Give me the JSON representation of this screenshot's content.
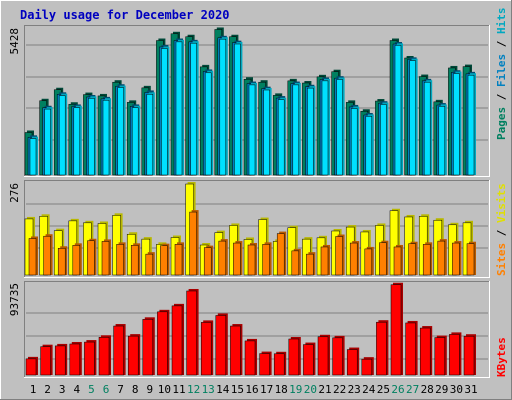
{
  "title": "Daily usage for December 2020",
  "colors": {
    "background": "#c0c0c0",
    "title": "#0000c0",
    "hits_front": "#00e0ff",
    "hits_side": "#00a8c0",
    "files_front": "#0080c0",
    "files_side": "#004c70",
    "pages_front": "#008060",
    "pages_side": "#004838",
    "visits_front": "#ffff00",
    "visits_side": "#b8b800",
    "sites_front": "#ff8000",
    "sites_side": "#b85a00",
    "kbytes_front": "#ff0000",
    "kbytes_side": "#a80000",
    "weekend_label": "#008060"
  },
  "chart_data": [
    {
      "type": "bar",
      "panel": "hits-files-pages",
      "ymax_label": "5428",
      "ylim": [
        0,
        5428
      ],
      "legend": [
        "Pages",
        "/",
        "Files",
        "/",
        "Hits"
      ],
      "categories": [
        "1",
        "2",
        "3",
        "4",
        "5",
        "6",
        "7",
        "8",
        "9",
        "10",
        "11",
        "12",
        "13",
        "14",
        "15",
        "16",
        "17",
        "18",
        "19",
        "20",
        "21",
        "22",
        "23",
        "24",
        "25",
        "26",
        "27",
        "28",
        "29",
        "30",
        "31"
      ],
      "series": [
        {
          "name": "Pages",
          "values": [
            1580,
            2760,
            3170,
            2630,
            2990,
            2940,
            3450,
            2700,
            3240,
            5000,
            5250,
            5140,
            4020,
            5410,
            5140,
            3560,
            3450,
            2960,
            3500,
            3420,
            3650,
            3840,
            2700,
            2370,
            2750,
            5000,
            4350,
            3660,
            2720,
            3980,
            4030
          ]
        },
        {
          "name": "Files",
          "values": [
            1400,
            2500,
            3000,
            2550,
            2900,
            2830,
            3300,
            2550,
            3070,
            4760,
            5000,
            4950,
            3850,
            5100,
            4920,
            3400,
            3210,
            2860,
            3400,
            3280,
            3550,
            3600,
            2530,
            2230,
            2670,
            4870,
            4300,
            3500,
            2600,
            3820,
            3760
          ]
        },
        {
          "name": "Hits",
          "values": [
            1350,
            2450,
            2950,
            2500,
            2850,
            2780,
            3250,
            2500,
            3000,
            4700,
            4950,
            4900,
            3800,
            5050,
            4870,
            3350,
            3160,
            2800,
            3350,
            3230,
            3500,
            3550,
            2470,
            2180,
            2620,
            4820,
            4250,
            3450,
            2550,
            3770,
            3710
          ]
        }
      ]
    },
    {
      "type": "bar",
      "panel": "visits-sites",
      "ymax_label": "276",
      "ylim": [
        0,
        276
      ],
      "legend": [
        "Sites",
        "/",
        "Visits"
      ],
      "categories": [
        "1",
        "2",
        "3",
        "4",
        "5",
        "6",
        "7",
        "8",
        "9",
        "10",
        "11",
        "12",
        "13",
        "14",
        "15",
        "16",
        "17",
        "18",
        "19",
        "20",
        "21",
        "22",
        "23",
        "24",
        "25",
        "26",
        "27",
        "28",
        "29",
        "30",
        "31"
      ],
      "series": [
        {
          "name": "Visits",
          "values": [
            172,
            180,
            136,
            166,
            160,
            158,
            183,
            125,
            110,
            94,
            115,
            279,
            92,
            130,
            152,
            109,
            170,
            103,
            145,
            110,
            114,
            135,
            147,
            132,
            152,
            197,
            178,
            180,
            168,
            154,
            160
          ]
        },
        {
          "name": "Sites",
          "values": [
            112,
            119,
            82,
            91,
            105,
            103,
            94,
            91,
            64,
            90,
            94,
            193,
            84,
            104,
            98,
            92,
            94,
            127,
            74,
            64,
            86,
            118,
            98,
            80,
            99,
            86,
            96,
            94,
            104,
            98,
            96
          ]
        }
      ]
    },
    {
      "type": "bar",
      "panel": "kbytes",
      "ymax_label": "93735",
      "ylim": [
        0,
        93735
      ],
      "legend": [
        "KBytes"
      ],
      "categories": [
        "1",
        "2",
        "3",
        "4",
        "5",
        "6",
        "7",
        "8",
        "9",
        "10",
        "11",
        "12",
        "13",
        "14",
        "15",
        "16",
        "17",
        "18",
        "19",
        "20",
        "21",
        "22",
        "23",
        "24",
        "25",
        "26",
        "27",
        "28",
        "29",
        "30",
        "31"
      ],
      "series": [
        {
          "name": "KBytes",
          "values": [
            16800,
            29500,
            30300,
            32300,
            34300,
            39300,
            51000,
            40500,
            58000,
            65800,
            72000,
            87500,
            54800,
            62000,
            51000,
            35500,
            22300,
            22100,
            37500,
            31700,
            39800,
            38700,
            26500,
            16500,
            55000,
            94000,
            54200,
            48900,
            39000,
            42300,
            40400
          ]
        }
      ]
    }
  ],
  "x_labels": [
    {
      "text": "1",
      "weekend": false
    },
    {
      "text": "2",
      "weekend": false
    },
    {
      "text": "3",
      "weekend": false
    },
    {
      "text": "4",
      "weekend": false
    },
    {
      "text": "5",
      "weekend": true
    },
    {
      "text": "6",
      "weekend": true
    },
    {
      "text": "7",
      "weekend": false
    },
    {
      "text": "8",
      "weekend": false
    },
    {
      "text": "9",
      "weekend": false
    },
    {
      "text": "10",
      "weekend": false
    },
    {
      "text": "11",
      "weekend": false
    },
    {
      "text": "12",
      "weekend": true
    },
    {
      "text": "13",
      "weekend": true
    },
    {
      "text": "14",
      "weekend": false
    },
    {
      "text": "15",
      "weekend": false
    },
    {
      "text": "16",
      "weekend": false
    },
    {
      "text": "17",
      "weekend": false
    },
    {
      "text": "18",
      "weekend": false
    },
    {
      "text": "19",
      "weekend": true
    },
    {
      "text": "20",
      "weekend": true
    },
    {
      "text": "21",
      "weekend": false
    },
    {
      "text": "22",
      "weekend": false
    },
    {
      "text": "23",
      "weekend": false
    },
    {
      "text": "24",
      "weekend": false
    },
    {
      "text": "25",
      "weekend": false
    },
    {
      "text": "26",
      "weekend": true
    },
    {
      "text": "27",
      "weekend": true
    },
    {
      "text": "28",
      "weekend": false
    },
    {
      "text": "29",
      "weekend": false
    },
    {
      "text": "30",
      "weekend": false
    },
    {
      "text": "31",
      "weekend": false
    }
  ]
}
